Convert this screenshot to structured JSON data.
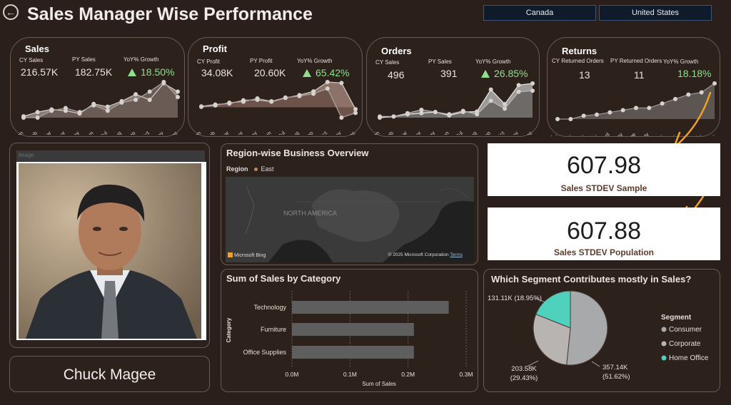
{
  "header": {
    "title": "Sales Manager Wise Performance",
    "slicers": [
      "Canada",
      "United States"
    ]
  },
  "months": [
    "Jan",
    "Feb",
    "Mar",
    "Apr",
    "May",
    "Jun",
    "Jul",
    "Aug",
    "Sep",
    "Oct",
    "Nov",
    "Dec"
  ],
  "kpis": {
    "sales": {
      "title": "Sales",
      "cy_label": "CY Sales",
      "cy_value": "216.57K",
      "py_label": "PY Sales",
      "py_value": "182.75K",
      "growth_label": "YoY% Growth",
      "growth_value": "18.50%",
      "up": true
    },
    "profit": {
      "title": "Profit",
      "cy_label": "CY Profit",
      "cy_value": "34.08K",
      "py_label": "PY Profit",
      "py_value": "20.60K",
      "growth_label": "YoY% Growth",
      "growth_value": "65.42%",
      "up": true
    },
    "orders": {
      "title": "Orders",
      "cy_label": "CY Sales",
      "cy_value": "496",
      "py_label": "PY Sales",
      "py_value": "391",
      "growth_label": "YoY% Growth",
      "growth_value": "26.85%",
      "up": true
    },
    "returns": {
      "title": "Returns",
      "cy_label": "CY Returned Orders",
      "cy_value": "13",
      "py_label": "PY Returned Orders",
      "py_value": "11",
      "growth_label": "YoY% Growth",
      "growth_value": "18.18%",
      "up": false,
      "axis_labels": [
        "(Bl...",
        "Jan...",
        "Feb...",
        "Mar...",
        "April",
        "May",
        "June",
        "July",
        "Aug...",
        "Sep...",
        "Oct...",
        "Nov...",
        "Dec..."
      ]
    }
  },
  "profile": {
    "image_label": "image",
    "name": "Chuck Magee"
  },
  "map": {
    "title": "Region-wise Business Overview",
    "legend_title": "Region",
    "legend_item": "East",
    "region_label": "NORTH AMERICA",
    "credit_left": "Microsoft Bing",
    "credit_right": "© 2025 Microsoft Corporation",
    "terms": "Terms"
  },
  "stdev": {
    "sample_value": "607.98",
    "sample_label": "Sales STDEV Sample",
    "population_value": "607.88",
    "population_label": "Sales STDEV Population"
  },
  "chart_data": [
    {
      "type": "line",
      "name": "Sales sparkline",
      "x": [
        "Jan",
        "Feb",
        "Mar",
        "Apr",
        "May",
        "Jun",
        "Jul",
        "Aug",
        "Sep",
        "Oct",
        "Nov",
        "Dec"
      ],
      "series": [
        {
          "name": "CY",
          "values": [
            6,
            9,
            11,
            10,
            8,
            15,
            13,
            17,
            22,
            18,
            30,
            24
          ]
        },
        {
          "name": "PY",
          "values": [
            5,
            5,
            10,
            12,
            9,
            14,
            10,
            16,
            18,
            24,
            31,
            20
          ]
        }
      ]
    },
    {
      "type": "line",
      "name": "Profit sparkline",
      "x": [
        "Jan",
        "Feb",
        "Mar",
        "Apr",
        "May",
        "Jun",
        "Jul",
        "Aug",
        "Sep",
        "Oct",
        "Nov",
        "Dec"
      ],
      "series": [
        {
          "name": "CY",
          "values": [
            0.2,
            0.6,
            0.8,
            1.5,
            1.6,
            1.2,
            2.0,
            2.6,
            3.4,
            5.4,
            5.2,
            -0.4
          ]
        },
        {
          "name": "PY",
          "values": [
            0.1,
            0.4,
            1.0,
            1.2,
            1.9,
            1.3,
            2.1,
            2.4,
            2.9,
            4.0,
            -2.2,
            -1.2
          ]
        }
      ]
    },
    {
      "type": "line",
      "name": "Orders sparkline",
      "x": [
        "Jan",
        "Feb",
        "Mar",
        "Apr",
        "May",
        "Jun",
        "Jul",
        "Aug",
        "Sep",
        "Oct",
        "Nov",
        "Dec"
      ],
      "series": [
        {
          "name": "CY",
          "values": [
            14,
            16,
            20,
            22,
            24,
            18,
            24,
            25,
            64,
            38,
            72,
            75
          ]
        },
        {
          "name": "PY",
          "values": [
            16,
            16,
            22,
            28,
            24,
            20,
            26,
            20,
            44,
            30,
            60,
            62
          ]
        }
      ]
    },
    {
      "type": "line",
      "name": "Returns sparkline",
      "x": [
        "(Bl...",
        "Jan...",
        "Feb...",
        "Mar...",
        "April",
        "May",
        "June",
        "July",
        "Aug...",
        "Sep...",
        "Oct...",
        "Nov...",
        "Dec..."
      ],
      "series": [
        {
          "name": "Returns",
          "values": [
            0,
            0,
            0.3,
            0.4,
            0.6,
            0.8,
            1.0,
            1.0,
            1.4,
            1.8,
            2.2,
            2.4,
            3.2
          ]
        }
      ]
    },
    {
      "type": "bar",
      "title": "Sum of Sales by Category",
      "categories": [
        "Technology",
        "Furniture",
        "Office Supplies"
      ],
      "values": [
        0.27,
        0.21,
        0.21
      ],
      "xlabel": "Sum of Sales",
      "ylabel": "Category",
      "xlim": [
        0,
        0.3
      ],
      "x_ticks": [
        "0.0M",
        "0.1M",
        "0.2M",
        "0.3M"
      ]
    },
    {
      "type": "pie",
      "title": "Which Segment Contributes mostly in Sales?",
      "legend_title": "Segment",
      "labels": [
        "Consumer",
        "Corporate",
        "Home Office"
      ],
      "values": [
        357.14,
        203.58,
        131.11
      ],
      "data_labels": [
        "357.14K (51.62%)",
        "203.58K (29.43%)",
        "131.11K (18.95%)"
      ],
      "colors": [
        "#a8a9ab",
        "#b8b4b1",
        "#4fd2bd"
      ]
    }
  ]
}
